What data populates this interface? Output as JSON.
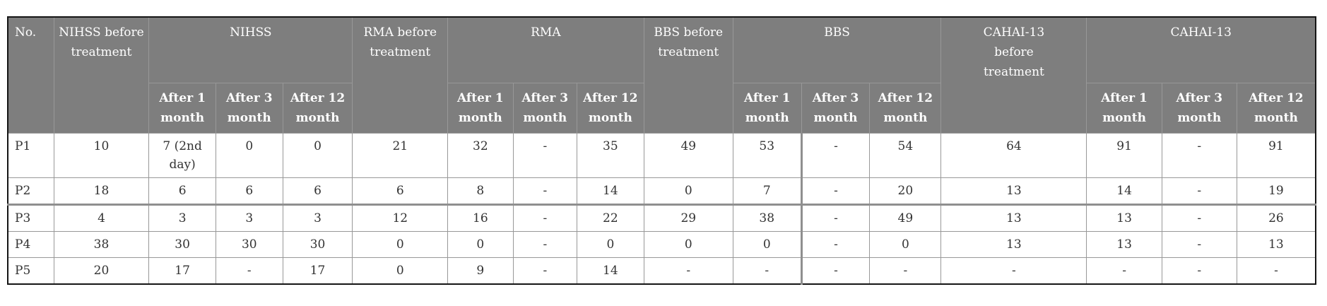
{
  "style": {
    "header_bg": "#7e7e7e",
    "header_text": "#ffffff",
    "body_text": "#333333",
    "inner_border": "#989898",
    "outer_border": "#151515",
    "section_divider": "#8f8f8f",
    "page_bg": "#ffffff"
  },
  "table": {
    "header": {
      "no_label": "No.",
      "groups": [
        {
          "before_label": "NIHSS before treatment",
          "group_label": "NIHSS"
        },
        {
          "before_label": "RMA before treatment",
          "group_label": "RMA"
        },
        {
          "before_label": "BBS before treatment",
          "group_label": "BBS"
        },
        {
          "before_label": "CAHAI-13 before treatment",
          "group_label": "CAHAI-13"
        }
      ],
      "sub_labels": [
        "After 1 month",
        "After 3 month",
        "After 12 month"
      ]
    },
    "rows": [
      {
        "no": "P1",
        "cells": [
          "10",
          "7 (2nd day)",
          "0",
          "0",
          "21",
          "32",
          "-",
          "35",
          "49",
          "53",
          "-",
          "54",
          "64",
          "91",
          "-",
          "91"
        ],
        "section_start": false
      },
      {
        "no": "P2",
        "cells": [
          "18",
          "6",
          "6",
          "6",
          "6",
          "8",
          "-",
          "14",
          "0",
          "7",
          "-",
          "20",
          "13",
          "14",
          "-",
          "19"
        ],
        "section_start": false
      },
      {
        "no": "P3",
        "cells": [
          "4",
          "3",
          "3",
          "3",
          "12",
          "16",
          "-",
          "22",
          "29",
          "38",
          "-",
          "49",
          "13",
          "13",
          "-",
          "26"
        ],
        "section_start": true
      },
      {
        "no": "P4",
        "cells": [
          "38",
          "30",
          "30",
          "30",
          "0",
          "0",
          "-",
          "0",
          "0",
          "0",
          "-",
          "0",
          "13",
          "13",
          "-",
          "13"
        ],
        "section_start": false
      },
      {
        "no": "P5",
        "cells": [
          "20",
          "17",
          "-",
          "17",
          "0",
          "9",
          "-",
          "14",
          "-",
          "-",
          "-",
          "-",
          "-",
          "-",
          "-",
          "-"
        ],
        "section_start": false
      }
    ]
  }
}
